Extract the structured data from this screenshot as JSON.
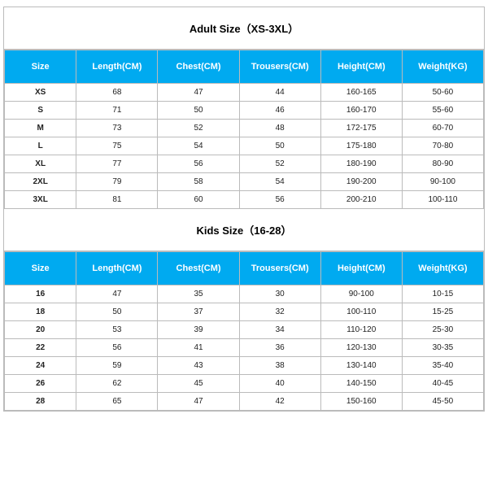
{
  "adult": {
    "title": "Adult Size（XS-3XL）",
    "columns": [
      "Size",
      "Length(CM)",
      "Chest(CM)",
      "Trousers(CM)",
      "Height(CM)",
      "Weight(KG)"
    ],
    "rows": [
      [
        "XS",
        "68",
        "47",
        "44",
        "160-165",
        "50-60"
      ],
      [
        "S",
        "71",
        "50",
        "46",
        "160-170",
        "55-60"
      ],
      [
        "M",
        "73",
        "52",
        "48",
        "172-175",
        "60-70"
      ],
      [
        "L",
        "75",
        "54",
        "50",
        "175-180",
        "70-80"
      ],
      [
        "XL",
        "77",
        "56",
        "52",
        "180-190",
        "80-90"
      ],
      [
        "2XL",
        "79",
        "58",
        "54",
        "190-200",
        "90-100"
      ],
      [
        "3XL",
        "81",
        "60",
        "56",
        "200-210",
        "100-110"
      ]
    ]
  },
  "kids": {
    "title": "Kids Size（16-28）",
    "columns": [
      "Size",
      "Length(CM)",
      "Chest(CM)",
      "Trousers(CM)",
      "Height(CM)",
      "Weight(KG)"
    ],
    "rows": [
      [
        "16",
        "47",
        "35",
        "30",
        "90-100",
        "10-15"
      ],
      [
        "18",
        "50",
        "37",
        "32",
        "100-110",
        "15-25"
      ],
      [
        "20",
        "53",
        "39",
        "34",
        "110-120",
        "25-30"
      ],
      [
        "22",
        "56",
        "41",
        "36",
        "120-130",
        "30-35"
      ],
      [
        "24",
        "59",
        "43",
        "38",
        "130-140",
        "35-40"
      ],
      [
        "26",
        "62",
        "45",
        "40",
        "140-150",
        "40-45"
      ],
      [
        "28",
        "65",
        "47",
        "42",
        "150-160",
        "45-50"
      ]
    ]
  },
  "style": {
    "header_bg": "#00aaf0",
    "header_fg": "#ffffff",
    "border_color": "#bbbbbb",
    "title_fontsize": 13,
    "header_fontsize": 11,
    "cell_fontsize": 10
  }
}
